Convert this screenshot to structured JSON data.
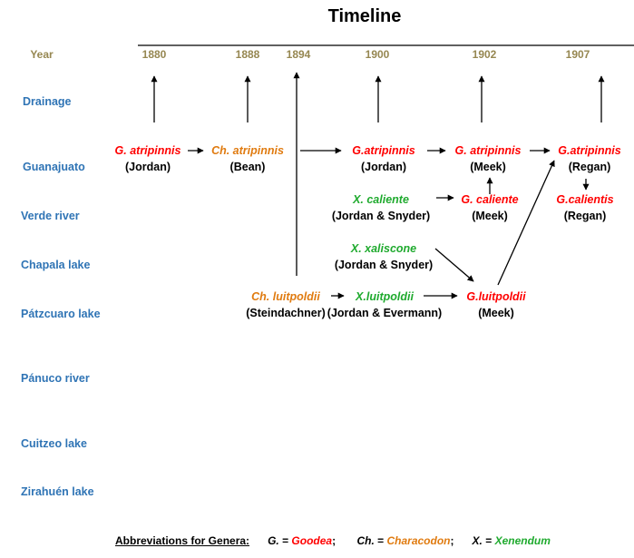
{
  "title": "Timeline",
  "colors": {
    "year": "#968751",
    "location": "#2f74b5",
    "goodea": "#ff0000",
    "characodon": "#e07b10",
    "xenendum": "#1faa2e",
    "line": "#000000"
  },
  "years": [
    {
      "id": "y1880",
      "label": "Year"
    },
    {
      "id": "y1880b",
      "label": "1880"
    },
    {
      "id": "y1888",
      "label": "1888"
    },
    {
      "id": "y1894",
      "label": "1894"
    },
    {
      "id": "y1900",
      "label": "1900"
    },
    {
      "id": "y1902",
      "label": "1902"
    },
    {
      "id": "y1907",
      "label": "1907"
    }
  ],
  "locations": [
    "Drainage",
    "Guanajuato",
    "Verde river",
    "Chapala lake",
    "Pátzcuaro lake",
    "Pánuco river",
    "Cuitzeo lake",
    "Zirahuén lake"
  ],
  "nodes": [
    {
      "id": "n1",
      "name": "G. atripinnis",
      "author": "(Jordan)",
      "genus": "goodea"
    },
    {
      "id": "n2",
      "name": "Ch. atripinnis",
      "author": "(Bean)",
      "genus": "characodon"
    },
    {
      "id": "n3",
      "name": "G.atripinnis",
      "author": "(Jordan)",
      "genus": "goodea"
    },
    {
      "id": "n4",
      "name": "G. atripinnis",
      "author": "(Meek)",
      "genus": "goodea"
    },
    {
      "id": "n5",
      "name": "G.atripinnis",
      "author": "(Regan)",
      "genus": "goodea"
    },
    {
      "id": "n6",
      "name": "X. caliente",
      "author": "(Jordan & Snyder)",
      "genus": "xenendum"
    },
    {
      "id": "n7",
      "name": "G. caliente",
      "author": "(Meek)",
      "genus": "goodea"
    },
    {
      "id": "n8",
      "name": "G.calientis",
      "author": "(Regan)",
      "genus": "goodea"
    },
    {
      "id": "n9",
      "name": "X. xaliscone",
      "author": "(Jordan & Snyder)",
      "genus": "xenendum"
    },
    {
      "id": "n10",
      "name": "Ch. luitpoldii",
      "author": "(Steindachner)",
      "genus": "characodon"
    },
    {
      "id": "n11",
      "name": "X.luitpoldii",
      "author": "(Jordan & Evermann)",
      "genus": "xenendum"
    },
    {
      "id": "n12",
      "name": "G.luitpoldii",
      "author": "(Meek)",
      "genus": "goodea"
    }
  ],
  "legend": {
    "label": "Abbreviations for Genera:",
    "g_abbr": "G.",
    "g_eq": " = ",
    "g_name": "Goodea",
    "sep1": ";",
    "ch_abbr": "Ch.",
    "ch_eq": " = ",
    "ch_name": "Characodon",
    "sep2": ";",
    "x_abbr": "X.",
    "x_eq": " = ",
    "x_name": "Xenendum"
  }
}
